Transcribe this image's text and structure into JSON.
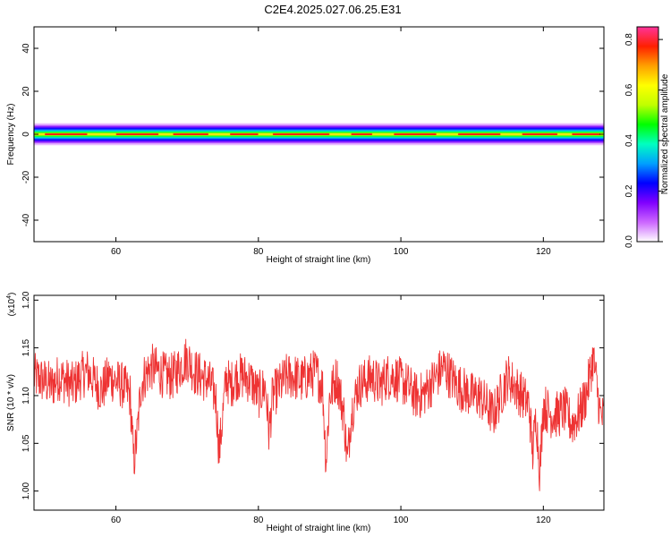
{
  "figure_title": "C2E4.2025.027.06.25.E31",
  "chart_data": [
    {
      "type": "heatmap",
      "xlabel": "Height of straight line (km)",
      "ylabel": "Frequency (Hz)",
      "xlim": [
        48.5,
        128.5
      ],
      "ylim": [
        -50,
        50
      ],
      "xticks": [
        60,
        80,
        100,
        120
      ],
      "xtick_labels": [
        "60",
        "80",
        "100",
        "120"
      ],
      "yticks": [
        -40,
        -20,
        0,
        20,
        40
      ],
      "ytick_labels": [
        "-40",
        "-20",
        "0",
        "20",
        "40"
      ],
      "band_center_hz": 0,
      "band_halfwidth_hz": 5,
      "colorbar": {
        "label": "Normalized spectral amplitude",
        "range": [
          0,
          0.85
        ],
        "ticks": [
          0.0,
          0.2,
          0.4,
          0.6,
          0.8
        ],
        "tick_labels": [
          "0.0",
          "0.2",
          "0.4",
          "0.6",
          "0.8"
        ],
        "colormap": [
          "#ffffff",
          "#cc66ff",
          "#8000ff",
          "#0000ff",
          "#00a0ff",
          "#00ffc0",
          "#00ff00",
          "#c0ff00",
          "#ffff00",
          "#ffa000",
          "#ff2000",
          "#ff3399"
        ]
      },
      "grid": false
    },
    {
      "type": "line",
      "xlabel": "Height of straight line (km)",
      "ylabel": "SNR (10 * v/v)",
      "y_multiplier_label": "(x10",
      "y_multiplier_exp": "4",
      "xlim": [
        48.5,
        128.5
      ],
      "ylim": [
        0.98,
        1.205
      ],
      "xticks": [
        60,
        80,
        100,
        120
      ],
      "xtick_labels": [
        "60",
        "80",
        "100",
        "120"
      ],
      "yticks": [
        1.0,
        1.05,
        1.1,
        1.15,
        1.2
      ],
      "ytick_labels": [
        "1.00",
        "1.05",
        "1.10",
        "1.15",
        "1.20"
      ],
      "line_color": "#ee3333",
      "grid": false,
      "series": [
        {
          "x": [
            48.5,
            50,
            51,
            52,
            53,
            54,
            55,
            56,
            57,
            58,
            59,
            60,
            61,
            62,
            62.5,
            63,
            63.5,
            64,
            65,
            66,
            67,
            68,
            69,
            70,
            71,
            72,
            73,
            74,
            74.5,
            75,
            75.5,
            76,
            77,
            78,
            79,
            80,
            81,
            81.5,
            82,
            83,
            84,
            85,
            86,
            87,
            88,
            89,
            89.5,
            90,
            91,
            92,
            92.5,
            93,
            94,
            95,
            96,
            97,
            98,
            99,
            100,
            101,
            102,
            103,
            104,
            105,
            106,
            107,
            108,
            109,
            110,
            111,
            112,
            113,
            114,
            115,
            116,
            117,
            118,
            118.5,
            119,
            119.5,
            120,
            121,
            122,
            123,
            124,
            125,
            126,
            127,
            127.5,
            128,
            128.5
          ],
          "y": [
            1.12,
            1.115,
            1.11,
            1.12,
            1.115,
            1.11,
            1.12,
            1.125,
            1.115,
            1.105,
            1.12,
            1.115,
            1.11,
            1.1,
            1.03,
            1.06,
            1.11,
            1.12,
            1.13,
            1.125,
            1.12,
            1.12,
            1.13,
            1.14,
            1.125,
            1.12,
            1.115,
            1.1,
            1.04,
            1.08,
            1.12,
            1.11,
            1.12,
            1.12,
            1.115,
            1.1,
            1.11,
            1.06,
            1.1,
            1.11,
            1.12,
            1.12,
            1.115,
            1.12,
            1.125,
            1.11,
            1.03,
            1.1,
            1.12,
            1.08,
            1.03,
            1.08,
            1.11,
            1.115,
            1.12,
            1.11,
            1.12,
            1.12,
            1.115,
            1.11,
            1.1,
            1.1,
            1.11,
            1.12,
            1.13,
            1.12,
            1.11,
            1.105,
            1.1,
            1.1,
            1.09,
            1.08,
            1.1,
            1.12,
            1.11,
            1.1,
            1.09,
            1.04,
            1.08,
            1.02,
            1.09,
            1.08,
            1.08,
            1.085,
            1.07,
            1.08,
            1.1,
            1.14,
            1.11,
            1.08,
            1.075
          ]
        }
      ]
    }
  ]
}
